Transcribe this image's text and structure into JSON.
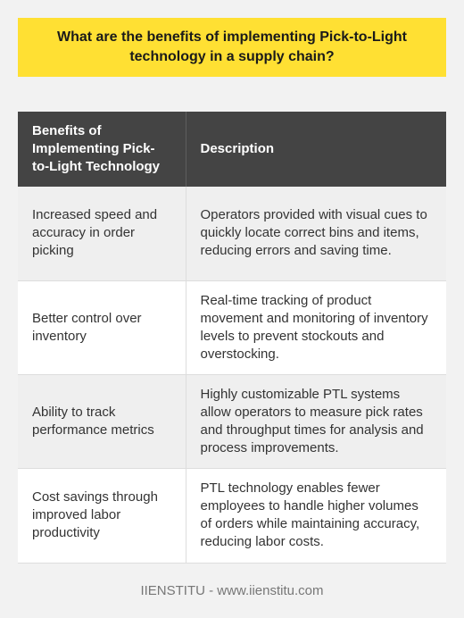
{
  "title": "What are the benefits of implementing Pick-to-Light technology in a supply chain?",
  "table": {
    "headers": {
      "benefit": "Benefits of Implementing Pick-to-Light Technology",
      "description": "Description"
    },
    "rows": [
      {
        "benefit": "Increased speed and accuracy in order picking",
        "description": "Operators provided with visual cues to quickly locate correct bins and items, reducing errors and saving time."
      },
      {
        "benefit": "Better control over inventory",
        "description": "Real-time tracking of product movement and monitoring of inventory levels to prevent stockouts and overstocking."
      },
      {
        "benefit": "Ability to track performance metrics",
        "description": "Highly customizable PTL systems allow operators to measure pick rates and throughput times for analysis and process improvements."
      },
      {
        "benefit": "Cost savings through improved labor productivity",
        "description": "PTL technology enables fewer employees to handle higher volumes of orders while maintaining accuracy, reducing labor costs."
      }
    ]
  },
  "footer": "IIENSTITU - www.iienstitu.com",
  "colors": {
    "title_background": "#ffe033",
    "header_background": "#444444",
    "page_background": "#f2f2f2"
  }
}
